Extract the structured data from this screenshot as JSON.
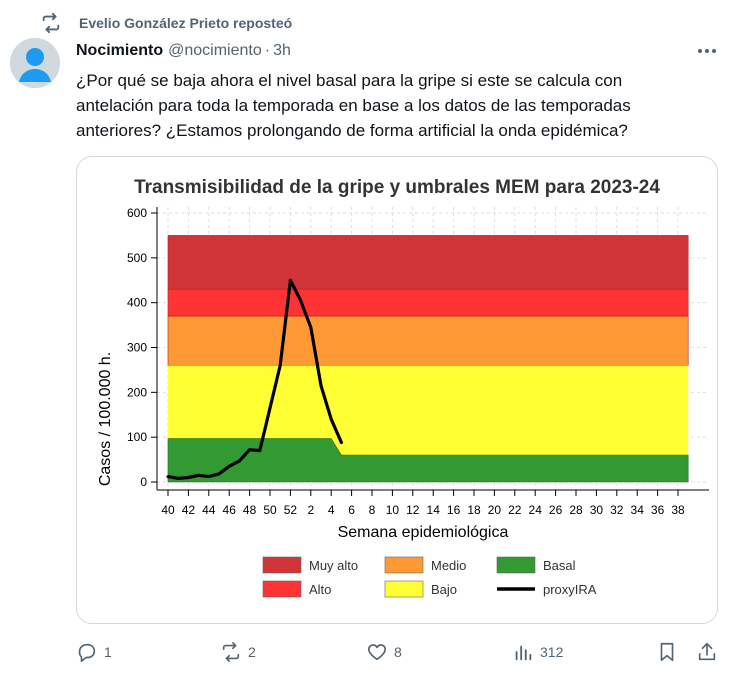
{
  "repost": {
    "text": "Evelio González Prieto reposteó",
    "icon": "repost-icon"
  },
  "author": {
    "name": "Nocimiento",
    "handle": "@nocimiento",
    "separator": "·",
    "time": "3h",
    "avatar_icon": "default-avatar"
  },
  "tweet": {
    "lines": [
      "¿Por qué se baja ahora el nivel basal para la gripe si este se calcula con",
      "antelación para toda la temporada en base a los datos de las temporadas",
      "anteriores? ¿Estamos prolongando de forma artificial la onda epidémica?"
    ]
  },
  "actions": {
    "reply": {
      "icon": "reply-icon",
      "count": "1"
    },
    "repost": {
      "icon": "repost-icon",
      "count": "2"
    },
    "like": {
      "icon": "heart-icon",
      "count": "8"
    },
    "views": {
      "icon": "views-icon",
      "count": "312"
    },
    "bookmark": {
      "icon": "bookmark-icon"
    },
    "share": {
      "icon": "share-icon"
    }
  },
  "colors": {
    "muy_alto": "#d03438",
    "alto": "#ff3333",
    "medio": "#ff9933",
    "bajo": "#ffff33",
    "basal": "#339933",
    "proxyira": "#000000",
    "muted": "#536471"
  },
  "chart_data": {
    "type": "area",
    "title": "Transmisibilidad de la gripe y umbrales MEM para 2023-24",
    "xlabel": "Semana epidemiológica",
    "ylabel": "Casos / 100.000 h.",
    "ylim": [
      0,
      600
    ],
    "yticks": [
      "0",
      "100",
      "200",
      "300",
      "400",
      "500",
      "600"
    ],
    "xticks": [
      "40",
      "42",
      "44",
      "46",
      "48",
      "50",
      "52",
      "2",
      "4",
      "6",
      "8",
      "10",
      "12",
      "14",
      "16",
      "18",
      "20",
      "22",
      "24",
      "26",
      "28",
      "30",
      "32",
      "34",
      "36",
      "38"
    ],
    "x_weeks": [
      "40",
      "41",
      "42",
      "43",
      "44",
      "45",
      "46",
      "47",
      "48",
      "49",
      "50",
      "51",
      "52",
      "1",
      "2",
      "3",
      "4",
      "5",
      "6",
      "7",
      "8",
      "9",
      "10",
      "11",
      "12",
      "13",
      "14",
      "15",
      "16",
      "17",
      "18",
      "19",
      "20",
      "21",
      "22",
      "23",
      "24",
      "25",
      "26",
      "27",
      "28",
      "29",
      "30",
      "31",
      "32",
      "33",
      "34",
      "35",
      "36",
      "37",
      "38",
      "39"
    ],
    "thresholds": {
      "basal_before_week_4": 97,
      "basal_from_week_5": 60,
      "bajo_upper": 260,
      "medio_upper": 370,
      "alto_upper": 430,
      "muy_alto_upper": 550
    },
    "series": [
      {
        "name": "proxyIRA",
        "x": [
          "40",
          "41",
          "42",
          "43",
          "44",
          "45",
          "46",
          "47",
          "48",
          "49",
          "50",
          "51",
          "52",
          "1",
          "2",
          "3",
          "4",
          "5"
        ],
        "values": [
          12,
          8,
          10,
          15,
          12,
          18,
          35,
          47,
          72,
          70,
          165,
          260,
          450,
          405,
          345,
          215,
          140,
          88
        ]
      }
    ],
    "legend": {
      "position": "bottom",
      "items": [
        {
          "label": "Muy alto",
          "color": "#d03438",
          "kind": "box"
        },
        {
          "label": "Medio",
          "color": "#ff9933",
          "kind": "box"
        },
        {
          "label": "Basal",
          "color": "#339933",
          "kind": "box"
        },
        {
          "label": "Alto",
          "color": "#ff3333",
          "kind": "box"
        },
        {
          "label": "Bajo",
          "color": "#ffff33",
          "kind": "box"
        },
        {
          "label": "proxyIRA",
          "color": "#000000",
          "kind": "line"
        }
      ]
    },
    "grid": true
  }
}
